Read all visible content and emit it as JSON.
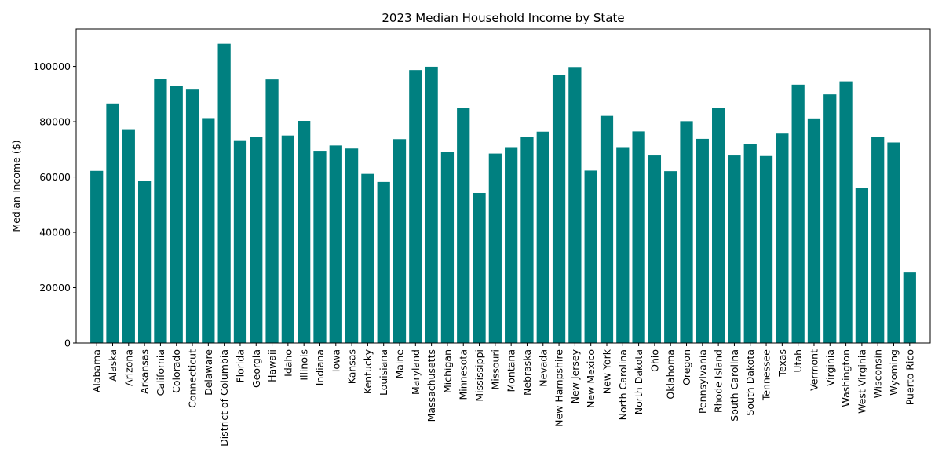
{
  "chart_data": {
    "type": "bar",
    "title": "2023 Median Household Income by State",
    "xlabel": "",
    "ylabel": "Median Income ($)",
    "ylim": [
      0,
      113500
    ],
    "yticks": [
      0,
      20000,
      40000,
      60000,
      80000,
      100000
    ],
    "grid": false,
    "bar_color": "#008080",
    "categories": [
      "Alabama",
      "Alaska",
      "Arizona",
      "Arkansas",
      "California",
      "Colorado",
      "Connecticut",
      "Delaware",
      "District of Columbia",
      "Florida",
      "Georgia",
      "Hawaii",
      "Idaho",
      "Illinois",
      "Indiana",
      "Iowa",
      "Kansas",
      "Kentucky",
      "Louisiana",
      "Maine",
      "Maryland",
      "Massachusetts",
      "Michigan",
      "Minnesota",
      "Mississippi",
      "Missouri",
      "Montana",
      "Nebraska",
      "Nevada",
      "New Hampshire",
      "New Jersey",
      "New Mexico",
      "New York",
      "North Carolina",
      "North Dakota",
      "Ohio",
      "Oklahoma",
      "Oregon",
      "Pennsylvania",
      "Rhode Island",
      "South Carolina",
      "South Dakota",
      "Tennessee",
      "Texas",
      "Utah",
      "Vermont",
      "Virginia",
      "Washington",
      "West Virginia",
      "Wisconsin",
      "Wyoming",
      "Puerto Rico"
    ],
    "values": [
      62200,
      86600,
      77300,
      58500,
      95500,
      93000,
      91600,
      81300,
      108200,
      73300,
      74600,
      95300,
      75000,
      80300,
      69500,
      71400,
      70300,
      61100,
      58200,
      73700,
      98700,
      99900,
      69200,
      85100,
      54200,
      68500,
      70800,
      74600,
      76400,
      97000,
      99800,
      62300,
      82100,
      70800,
      76500,
      67800,
      62100,
      80200,
      73800,
      85000,
      67800,
      71800,
      67600,
      75700,
      93400,
      81200,
      89900,
      94600,
      56000,
      74600,
      72500,
      25500
    ]
  }
}
